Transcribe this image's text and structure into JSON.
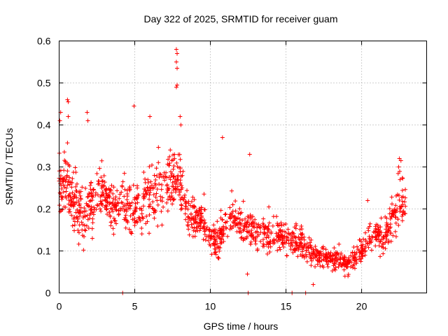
{
  "chart_data": {
    "type": "scatter",
    "title": "Day 322 of 2025, SRMTID for receiver guam",
    "xlabel": "GPS time / hours",
    "ylabel": "SRMTID / TECUs",
    "xlim": [
      0,
      24.3
    ],
    "ylim": [
      0,
      0.6
    ],
    "xticks": [
      0,
      5,
      10,
      15,
      20
    ],
    "xtick_labels": [
      "0",
      "5",
      "10",
      "15",
      "20"
    ],
    "yticks": [
      0,
      0.1,
      0.2,
      0.3,
      0.4,
      0.5,
      0.6
    ],
    "ytick_labels": [
      "0",
      "0.1",
      "0.2",
      "0.3",
      "0.4",
      "0.5",
      "0.6"
    ],
    "grid": true,
    "marker": "plus",
    "color": "#ff0000",
    "series": [
      {
        "name": "SRMTID",
        "trend": [
          [
            0.0,
            0.27
          ],
          [
            0.5,
            0.26
          ],
          [
            1.0,
            0.22
          ],
          [
            1.5,
            0.18
          ],
          [
            2.0,
            0.2
          ],
          [
            2.5,
            0.24
          ],
          [
            3.0,
            0.23
          ],
          [
            3.5,
            0.21
          ],
          [
            4.0,
            0.2
          ],
          [
            4.5,
            0.21
          ],
          [
            5.0,
            0.2
          ],
          [
            5.5,
            0.21
          ],
          [
            6.0,
            0.23
          ],
          [
            6.5,
            0.24
          ],
          [
            7.0,
            0.25
          ],
          [
            7.5,
            0.26
          ],
          [
            8.0,
            0.27
          ],
          [
            8.5,
            0.19
          ],
          [
            9.0,
            0.18
          ],
          [
            9.5,
            0.17
          ],
          [
            10.0,
            0.13
          ],
          [
            10.5,
            0.12
          ],
          [
            11.0,
            0.16
          ],
          [
            11.5,
            0.18
          ],
          [
            12.0,
            0.16
          ],
          [
            12.5,
            0.15
          ],
          [
            13.0,
            0.14
          ],
          [
            13.5,
            0.14
          ],
          [
            14.0,
            0.13
          ],
          [
            14.5,
            0.14
          ],
          [
            15.0,
            0.13
          ],
          [
            15.5,
            0.12
          ],
          [
            16.0,
            0.12
          ],
          [
            16.5,
            0.1
          ],
          [
            17.0,
            0.09
          ],
          [
            17.5,
            0.09
          ],
          [
            18.0,
            0.08
          ],
          [
            18.5,
            0.08
          ],
          [
            19.0,
            0.07
          ],
          [
            19.5,
            0.08
          ],
          [
            20.0,
            0.1
          ],
          [
            20.5,
            0.13
          ],
          [
            21.0,
            0.14
          ],
          [
            21.5,
            0.13
          ],
          [
            22.0,
            0.17
          ],
          [
            22.5,
            0.22
          ],
          [
            22.9,
            0.2
          ]
        ],
        "spread": [
          [
            0.0,
            0.09
          ],
          [
            2.0,
            0.08
          ],
          [
            4.0,
            0.08
          ],
          [
            6.0,
            0.09
          ],
          [
            7.5,
            0.1
          ],
          [
            8.5,
            0.06
          ],
          [
            10.0,
            0.04
          ],
          [
            12.0,
            0.06
          ],
          [
            14.0,
            0.05
          ],
          [
            16.0,
            0.04
          ],
          [
            18.0,
            0.03
          ],
          [
            19.5,
            0.03
          ],
          [
            21.0,
            0.04
          ],
          [
            22.0,
            0.06
          ],
          [
            22.9,
            0.07
          ]
        ],
        "notable_points": [
          {
            "x": 0.05,
            "y": 0.41
          },
          {
            "x": 0.1,
            "y": 0.43
          },
          {
            "x": 0.55,
            "y": 0.46
          },
          {
            "x": 0.6,
            "y": 0.455
          },
          {
            "x": 0.6,
            "y": 0.42
          },
          {
            "x": 1.85,
            "y": 0.43
          },
          {
            "x": 1.9,
            "y": 0.41
          },
          {
            "x": 4.95,
            "y": 0.445
          },
          {
            "x": 6.0,
            "y": 0.42
          },
          {
            "x": 7.75,
            "y": 0.58
          },
          {
            "x": 7.8,
            "y": 0.57
          },
          {
            "x": 7.75,
            "y": 0.55
          },
          {
            "x": 7.8,
            "y": 0.535
          },
          {
            "x": 7.75,
            "y": 0.49
          },
          {
            "x": 7.8,
            "y": 0.495
          },
          {
            "x": 8.0,
            "y": 0.42
          },
          {
            "x": 8.05,
            "y": 0.4
          },
          {
            "x": 10.8,
            "y": 0.37
          },
          {
            "x": 12.6,
            "y": 0.33
          },
          {
            "x": 12.45,
            "y": 0.045
          },
          {
            "x": 4.2,
            "y": 0.0
          },
          {
            "x": 15.4,
            "y": 0.0
          },
          {
            "x": 16.3,
            "y": 0.0
          },
          {
            "x": 12.5,
            "y": 0.0
          },
          {
            "x": 22.5,
            "y": 0.32
          },
          {
            "x": 22.6,
            "y": 0.315
          },
          {
            "x": 22.45,
            "y": 0.3
          },
          {
            "x": 20.4,
            "y": 0.22
          },
          {
            "x": 16.8,
            "y": 0.02
          },
          {
            "x": 18.9,
            "y": 0.04
          },
          {
            "x": 19.1,
            "y": 0.04
          }
        ]
      }
    ]
  }
}
